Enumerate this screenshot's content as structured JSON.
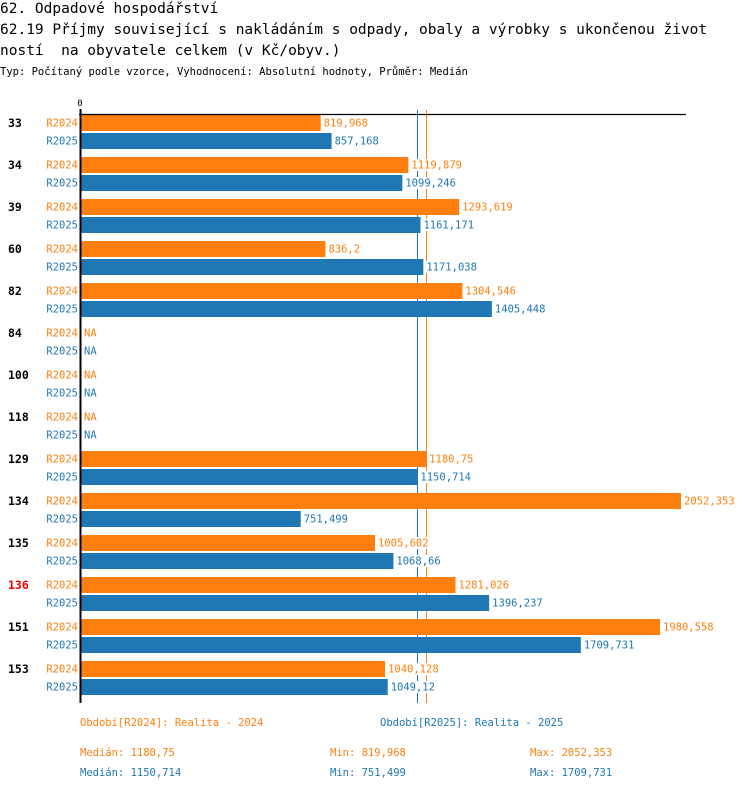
{
  "header": {
    "title_line1": "62. Odpadové hospodářství",
    "title_line2": "62.19 Příjmy související s nakládáním s odpady, obaly a výrobky s ukončenou život",
    "title_line3": "ností  na obyvatele celkem (v Kč/obyv.)",
    "subtitle": "Typ: Počítaný podle vzorce, Vyhodnocení: Absolutní hodnoty, Průměr: Medián"
  },
  "colors": {
    "R2024": "#ff7f0e",
    "R2025": "#1f77b4",
    "highlight": "#ee0000",
    "axis": "#000000"
  },
  "chart_data": {
    "type": "bar",
    "orientation": "horizontal",
    "title": "62.19 Příjmy související s nakládáním s odpady, obaly a výrobky s ukončenou životností  na obyvatele celkem (v Kč/obyv.)",
    "xlabel": "",
    "ylabel": "",
    "x_tick_labels": [
      "0"
    ],
    "xlim": [
      0,
      2052.353
    ],
    "categories": [
      "33",
      "34",
      "39",
      "60",
      "82",
      "84",
      "100",
      "118",
      "129",
      "134",
      "135",
      "136",
      "151",
      "153"
    ],
    "highlighted_category": "136",
    "series": [
      {
        "name": "R2024",
        "values": [
          819.968,
          1119.879,
          1293.619,
          836.2,
          1304.546,
          null,
          null,
          null,
          1180.75,
          2052.353,
          1005.602,
          1281.026,
          1980.558,
          1040.128
        ],
        "labels": [
          "819,968",
          "1119,879",
          "1293,619",
          "836,2",
          "1304,546",
          "NA",
          "NA",
          "NA",
          "1180,75",
          "2052,353",
          "1005,602",
          "1281,026",
          "1980,558",
          "1040,128"
        ],
        "median": 1180.75
      },
      {
        "name": "R2025",
        "values": [
          857.168,
          1099.246,
          1161.171,
          1171.038,
          1405.448,
          null,
          null,
          null,
          1150.714,
          751.499,
          1068.66,
          1396.237,
          1709.731,
          1049.12
        ],
        "labels": [
          "857,168",
          "1099,246",
          "1161,171",
          "1171,038",
          "1405,448",
          "NA",
          "NA",
          "NA",
          "1150,714",
          "751,499",
          "1068,66",
          "1396,237",
          "1709,731",
          "1049,12"
        ],
        "median": 1150.714
      }
    ],
    "median_lines": true,
    "grid": false
  },
  "legend": {
    "r2024_period": "Období[R2024]: Realita - 2024",
    "r2025_period": "Období[R2025]: Realita - 2025",
    "r2024_median": "Medián: 1180,75",
    "r2024_min": "Min: 819,968",
    "r2024_max": "Max: 2052,353",
    "r2025_median": "Medián: 1150,714",
    "r2025_min": "Min: 751,499",
    "r2025_max": "Max: 1709,731"
  }
}
